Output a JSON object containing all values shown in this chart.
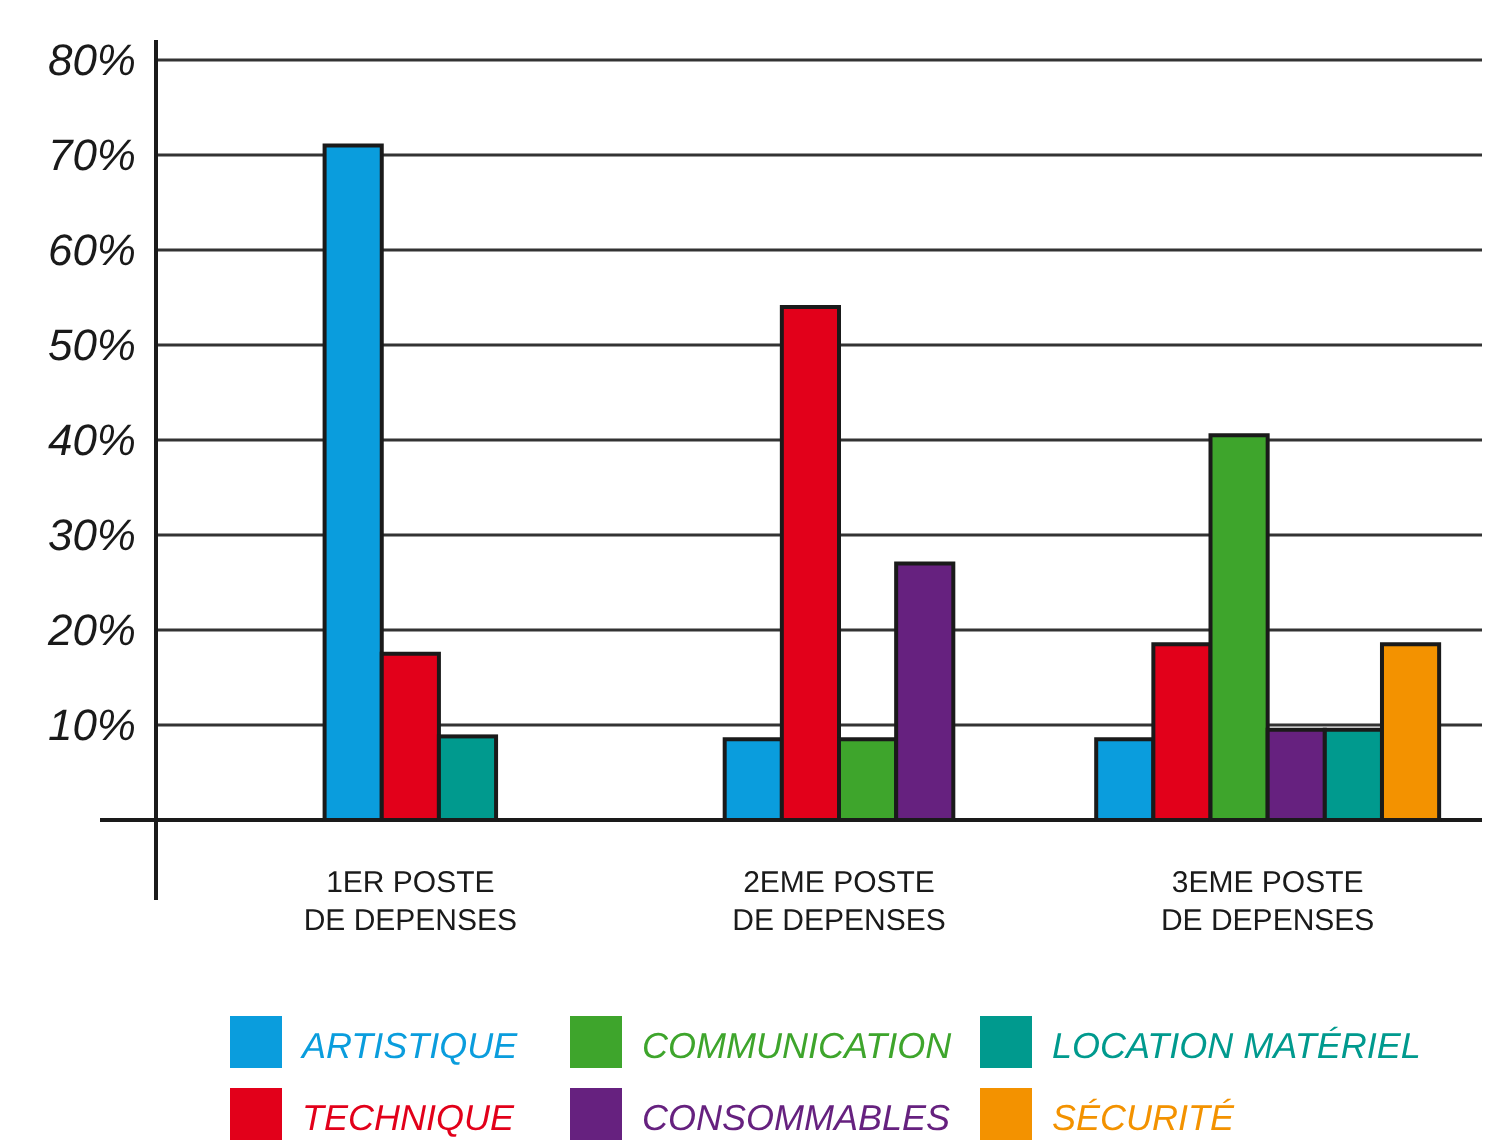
{
  "chart_data": {
    "type": "bar",
    "categories": [
      "1ER POSTE DE DEPENSES",
      "2EME POSTE DE DEPENSES",
      "3EME POSTE DE DEPENSES"
    ],
    "series": [
      {
        "name": "ARTISTIQUE",
        "color": "#0a9ddd",
        "values": [
          71,
          8.5,
          8.5
        ]
      },
      {
        "name": "TECHNIQUE",
        "color": "#e2001a",
        "values": [
          17.5,
          54,
          18.5
        ]
      },
      {
        "name": "COMMUNICATION",
        "color": "#3ea52c",
        "values": [
          null,
          8.5,
          40.5
        ]
      },
      {
        "name": "CONSOMMABLES",
        "color": "#66217f",
        "values": [
          null,
          27,
          9.5
        ]
      },
      {
        "name": "LOCATION MATÉRIEL",
        "color": "#009a8e",
        "values": [
          8.8,
          null,
          9.5
        ]
      },
      {
        "name": "SÉCURITÉ",
        "color": "#f39200",
        "values": [
          null,
          null,
          18.5
        ]
      }
    ],
    "ylim": [
      0,
      80
    ],
    "yticks": [
      {
        "value": 0,
        "label": null
      },
      {
        "value": 10,
        "label": "10%"
      },
      {
        "value": 20,
        "label": "20%"
      },
      {
        "value": 30,
        "label": "30%"
      },
      {
        "value": 40,
        "label": "40%"
      },
      {
        "value": 50,
        "label": "50%"
      },
      {
        "value": 60,
        "label": "60%"
      },
      {
        "value": 70,
        "label": "70%"
      },
      {
        "value": 80,
        "label": "80%"
      }
    ],
    "grid": "y",
    "legend": "bottom"
  }
}
